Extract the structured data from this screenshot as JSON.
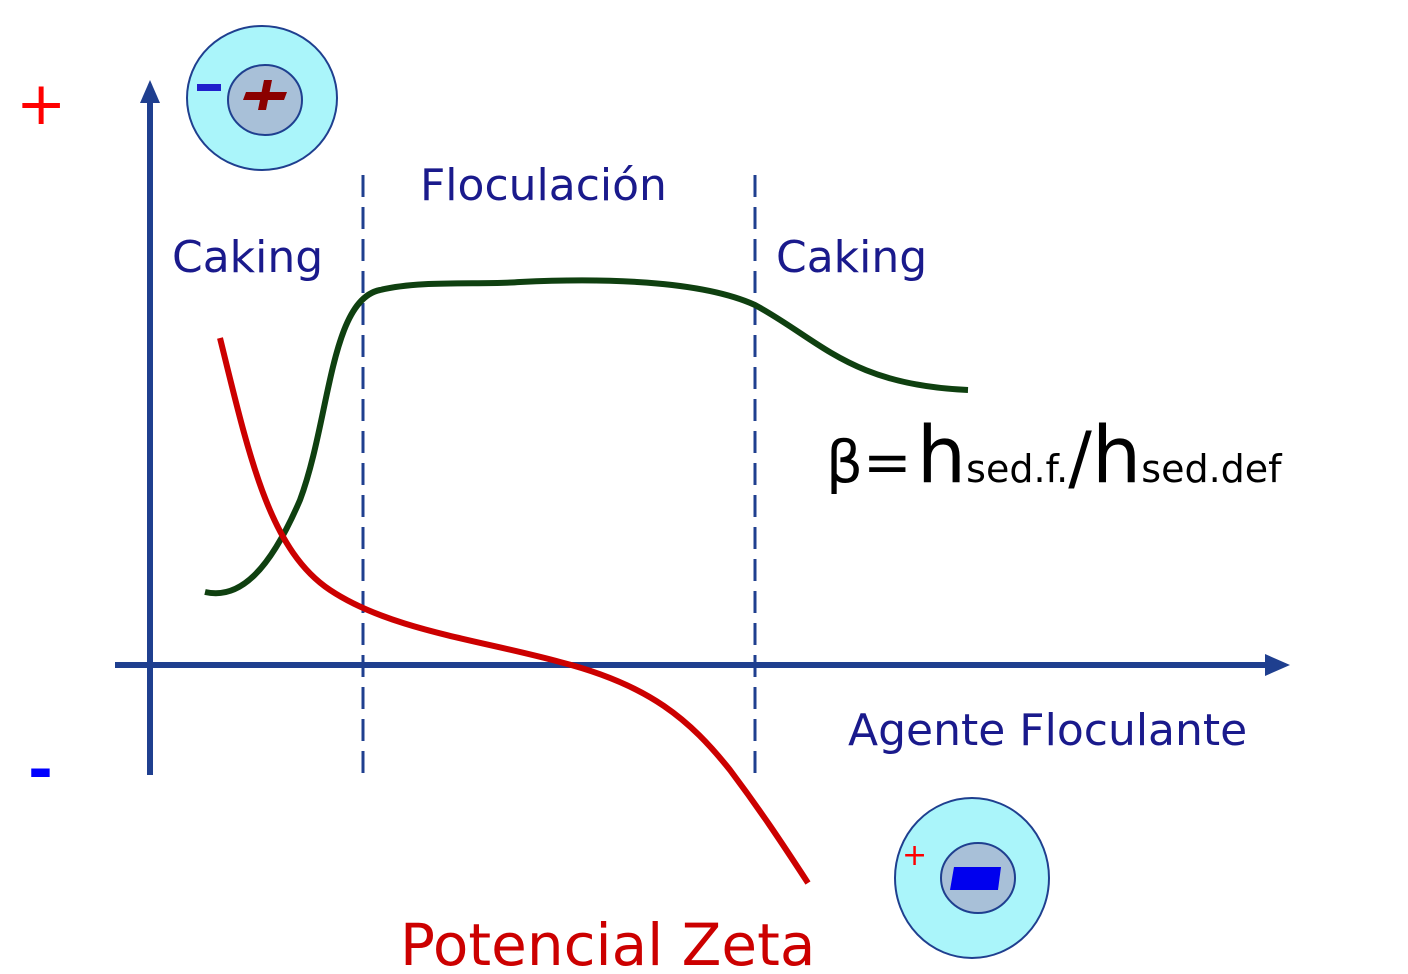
{
  "axis": {
    "plus": "+",
    "minus": "-",
    "x_label": "Agente Floculante"
  },
  "regions": [
    "Caking",
    "Floculación",
    "Caking"
  ],
  "formula": {
    "beta": "β=",
    "h1": "h",
    "sub1": "sed.f.",
    "slash": "/",
    "h2": "h",
    "sub2": "sed.def"
  },
  "curves": {
    "zeta_label": "Potencial Zeta"
  },
  "particles": {
    "bottom_charge": "+"
  }
}
